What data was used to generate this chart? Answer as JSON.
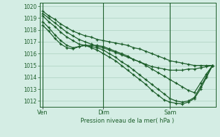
{
  "xlabel": "Pression niveau de la mer( hPa )",
  "bg_color": "#d4ede4",
  "grid_color": "#aacfbe",
  "line_color": "#1a5c28",
  "ylim": [
    1011.5,
    1020.3
  ],
  "yticks": [
    1012,
    1013,
    1014,
    1015,
    1016,
    1017,
    1018,
    1019,
    1020
  ],
  "xtick_labels": [
    "Ven",
    "Dim",
    "Sam"
  ],
  "xtick_positions": [
    0,
    10,
    21
  ],
  "total_points": 29,
  "series": [
    [
      1019.6,
      1019.2,
      1018.9,
      1018.5,
      1018.2,
      1017.9,
      1017.7,
      1017.5,
      1017.4,
      1017.2,
      1017.1,
      1017.0,
      1016.9,
      1016.8,
      1016.7,
      1016.5,
      1016.4,
      1016.2,
      1016.0,
      1015.8,
      1015.6,
      1015.4,
      1015.3,
      1015.2,
      1015.1,
      1015.0,
      1015.0,
      1015.0,
      1015.0
    ],
    [
      1019.4,
      1019.0,
      1018.6,
      1018.2,
      1017.8,
      1017.5,
      1017.2,
      1017.0,
      1016.8,
      1016.6,
      1016.5,
      1016.3,
      1016.1,
      1015.9,
      1015.7,
      1015.5,
      1015.3,
      1015.1,
      1014.9,
      1014.8,
      1014.7,
      1014.6,
      1014.6,
      1014.6,
      1014.7,
      1014.7,
      1014.8,
      1014.9,
      1015.0
    ],
    [
      1019.2,
      1018.7,
      1018.3,
      1017.8,
      1017.4,
      1017.1,
      1016.8,
      1016.7,
      1016.7,
      1016.7,
      1016.6,
      1016.4,
      1016.2,
      1016.0,
      1015.8,
      1015.5,
      1015.3,
      1015.0,
      1014.7,
      1014.4,
      1014.1,
      1013.8,
      1013.5,
      1013.2,
      1012.9,
      1012.7,
      1013.5,
      1014.3,
      1015.0
    ],
    [
      1018.7,
      1018.2,
      1017.6,
      1017.1,
      1016.7,
      1016.5,
      1016.6,
      1016.7,
      1016.6,
      1016.5,
      1016.3,
      1016.0,
      1015.7,
      1015.3,
      1015.0,
      1014.6,
      1014.2,
      1013.8,
      1013.4,
      1013.0,
      1012.6,
      1012.2,
      1012.0,
      1011.9,
      1012.0,
      1012.3,
      1013.2,
      1014.1,
      1015.0
    ],
    [
      1018.4,
      1017.9,
      1017.3,
      1016.8,
      1016.5,
      1016.4,
      1016.6,
      1016.7,
      1016.5,
      1016.3,
      1016.0,
      1015.7,
      1015.4,
      1015.0,
      1014.6,
      1014.2,
      1013.8,
      1013.4,
      1012.9,
      1012.5,
      1012.1,
      1011.9,
      1011.8,
      1011.75,
      1011.9,
      1012.2,
      1013.0,
      1014.0,
      1015.0
    ]
  ]
}
